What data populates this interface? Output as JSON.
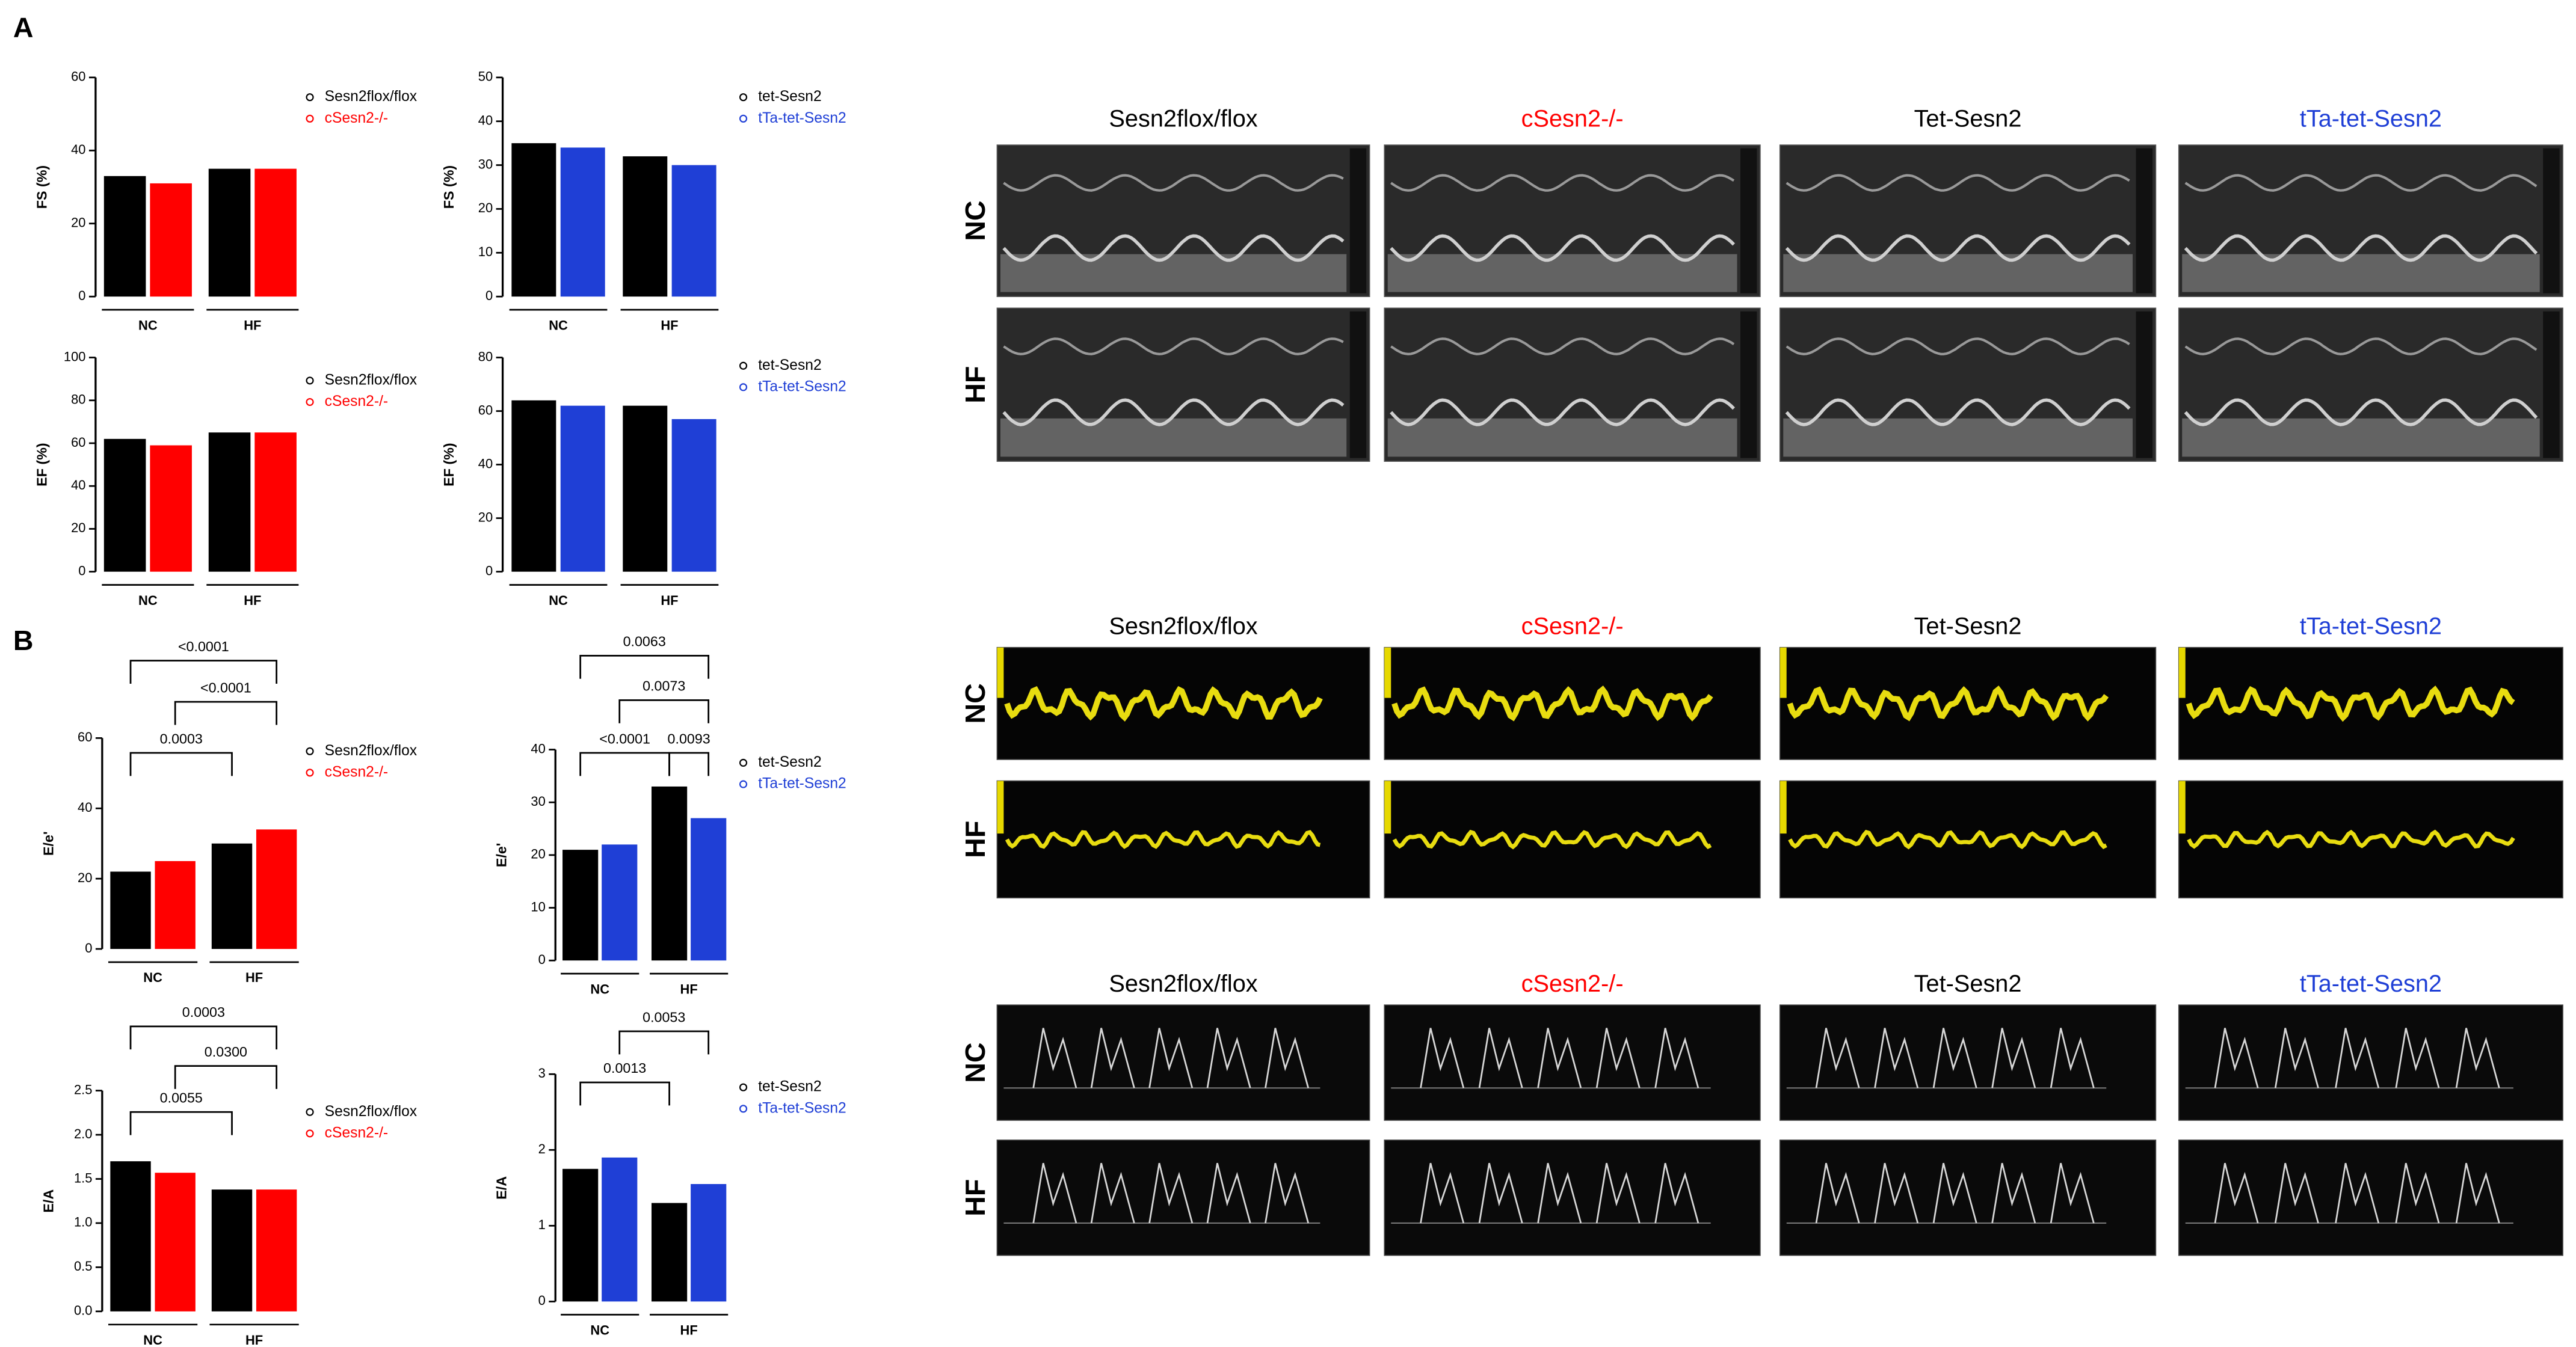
{
  "panel_labels": [
    "A",
    "B"
  ],
  "image_panels": [
    {
      "columns": [
        "Sesn2flox/flox",
        "cSesn2-/-",
        "Tet-Sesn2",
        "tTa-tet-Sesn2"
      ],
      "column_colors": [
        "#000000",
        "#ff0000",
        "#000000",
        "#1f3fd6"
      ],
      "rows": [
        "NC",
        "HF"
      ]
    },
    {
      "columns": [
        "Sesn2flox/flox",
        "cSesn2-/-",
        "Tet-Sesn2",
        "tTa-tet-Sesn2"
      ],
      "column_colors": [
        "#000000",
        "#ff0000",
        "#000000",
        "#1f3fd6"
      ],
      "rows": [
        "NC",
        "HF"
      ]
    },
    {
      "columns": [
        "Sesn2flox/flox",
        "cSesn2-/-",
        "Tet-Sesn2",
        "tTa-tet-Sesn2"
      ],
      "column_colors": [
        "#000000",
        "#ff0000",
        "#000000",
        "#1f3fd6"
      ],
      "rows": [
        "NC",
        "HF"
      ]
    }
  ],
  "chart_data": [
    {
      "type": "bar",
      "y_label": "FS (%)",
      "categories": [
        "NC",
        "HF"
      ],
      "series": [
        {
          "name": "Sesn2flox/flox",
          "color": "#000000",
          "values": [
            33,
            35
          ]
        },
        {
          "name": "cSesn2-/-",
          "color": "#ff0000",
          "values": [
            31,
            35
          ]
        }
      ],
      "ylim": [
        0,
        60
      ],
      "yticks": [
        0,
        20,
        40,
        60
      ]
    },
    {
      "type": "bar",
      "y_label": "FS (%)",
      "categories": [
        "NC",
        "HF"
      ],
      "series": [
        {
          "name": "tet-Sesn2",
          "color": "#000000",
          "values": [
            35,
            32
          ]
        },
        {
          "name": "tTa-tet-Sesn2",
          "color": "#1f3fd6",
          "values": [
            34,
            30
          ]
        }
      ],
      "ylim": [
        0,
        50
      ],
      "yticks": [
        0,
        10,
        20,
        30,
        40,
        50
      ]
    },
    {
      "type": "bar",
      "y_label": "EF (%)",
      "categories": [
        "NC",
        "HF"
      ],
      "series": [
        {
          "name": "Sesn2flox/flox",
          "color": "#000000",
          "values": [
            62,
            65
          ]
        },
        {
          "name": "cSesn2-/-",
          "color": "#ff0000",
          "values": [
            59,
            65
          ]
        }
      ],
      "ylim": [
        0,
        100
      ],
      "yticks": [
        0,
        20,
        40,
        60,
        80,
        100
      ]
    },
    {
      "type": "bar",
      "y_label": "EF (%)",
      "categories": [
        "NC",
        "HF"
      ],
      "series": [
        {
          "name": "tet-Sesn2",
          "color": "#000000",
          "values": [
            64,
            62
          ]
        },
        {
          "name": "tTa-tet-Sesn2",
          "color": "#1f3fd6",
          "values": [
            62,
            57
          ]
        }
      ],
      "ylim": [
        0,
        80
      ],
      "yticks": [
        0,
        20,
        40,
        60,
        80
      ]
    },
    {
      "type": "bar",
      "y_label": "E/e'",
      "categories": [
        "NC",
        "HF"
      ],
      "series": [
        {
          "name": "Sesn2flox/flox",
          "color": "#000000",
          "values": [
            22,
            30
          ]
        },
        {
          "name": "cSesn2-/-",
          "color": "#ff0000",
          "values": [
            25,
            34
          ]
        }
      ],
      "ylim": [
        0,
        60
      ],
      "yticks": [
        0,
        20,
        40,
        60
      ],
      "annotations": [
        "<0.0001",
        "<0.0001",
        "0.0003"
      ]
    },
    {
      "type": "bar",
      "y_label": "E/e'",
      "categories": [
        "NC",
        "HF"
      ],
      "series": [
        {
          "name": "tet-Sesn2",
          "color": "#000000",
          "values": [
            21,
            33
          ]
        },
        {
          "name": "tTa-tet-Sesn2",
          "color": "#1f3fd6",
          "values": [
            22,
            27
          ]
        }
      ],
      "ylim": [
        0,
        40
      ],
      "yticks": [
        0,
        10,
        20,
        30,
        40
      ],
      "annotations": [
        "0.0063",
        "0.0073",
        "<0.0001",
        "0.0093"
      ]
    },
    {
      "type": "bar",
      "y_label": "E/A",
      "categories": [
        "NC",
        "HF"
      ],
      "series": [
        {
          "name": "Sesn2flox/flox",
          "color": "#000000",
          "values": [
            1.7,
            1.38
          ]
        },
        {
          "name": "cSesn2-/-",
          "color": "#ff0000",
          "values": [
            1.57,
            1.38
          ]
        }
      ],
      "ylim": [
        0,
        2.5
      ],
      "yticks": [
        {
          "value": 0,
          "label": "0.0"
        },
        0.5,
        {
          "value": 1,
          "label": "1.0"
        },
        1.5,
        {
          "value": 2,
          "label": "2.0"
        },
        2.5
      ],
      "annotations": [
        "0.0003",
        "0.0300",
        "0.0055"
      ]
    },
    {
      "type": "bar",
      "y_label": "E/A",
      "categories": [
        "NC",
        "HF"
      ],
      "series": [
        {
          "name": "tet-Sesn2",
          "color": "#000000",
          "values": [
            1.75,
            1.3
          ]
        },
        {
          "name": "tTa-tet-Sesn2",
          "color": "#1f3fd6",
          "values": [
            1.9,
            1.55
          ]
        }
      ],
      "ylim": [
        0,
        3
      ],
      "yticks": [
        0,
        1,
        2,
        3
      ],
      "annotations": [
        "0.0053",
        "0.0013"
      ]
    }
  ]
}
